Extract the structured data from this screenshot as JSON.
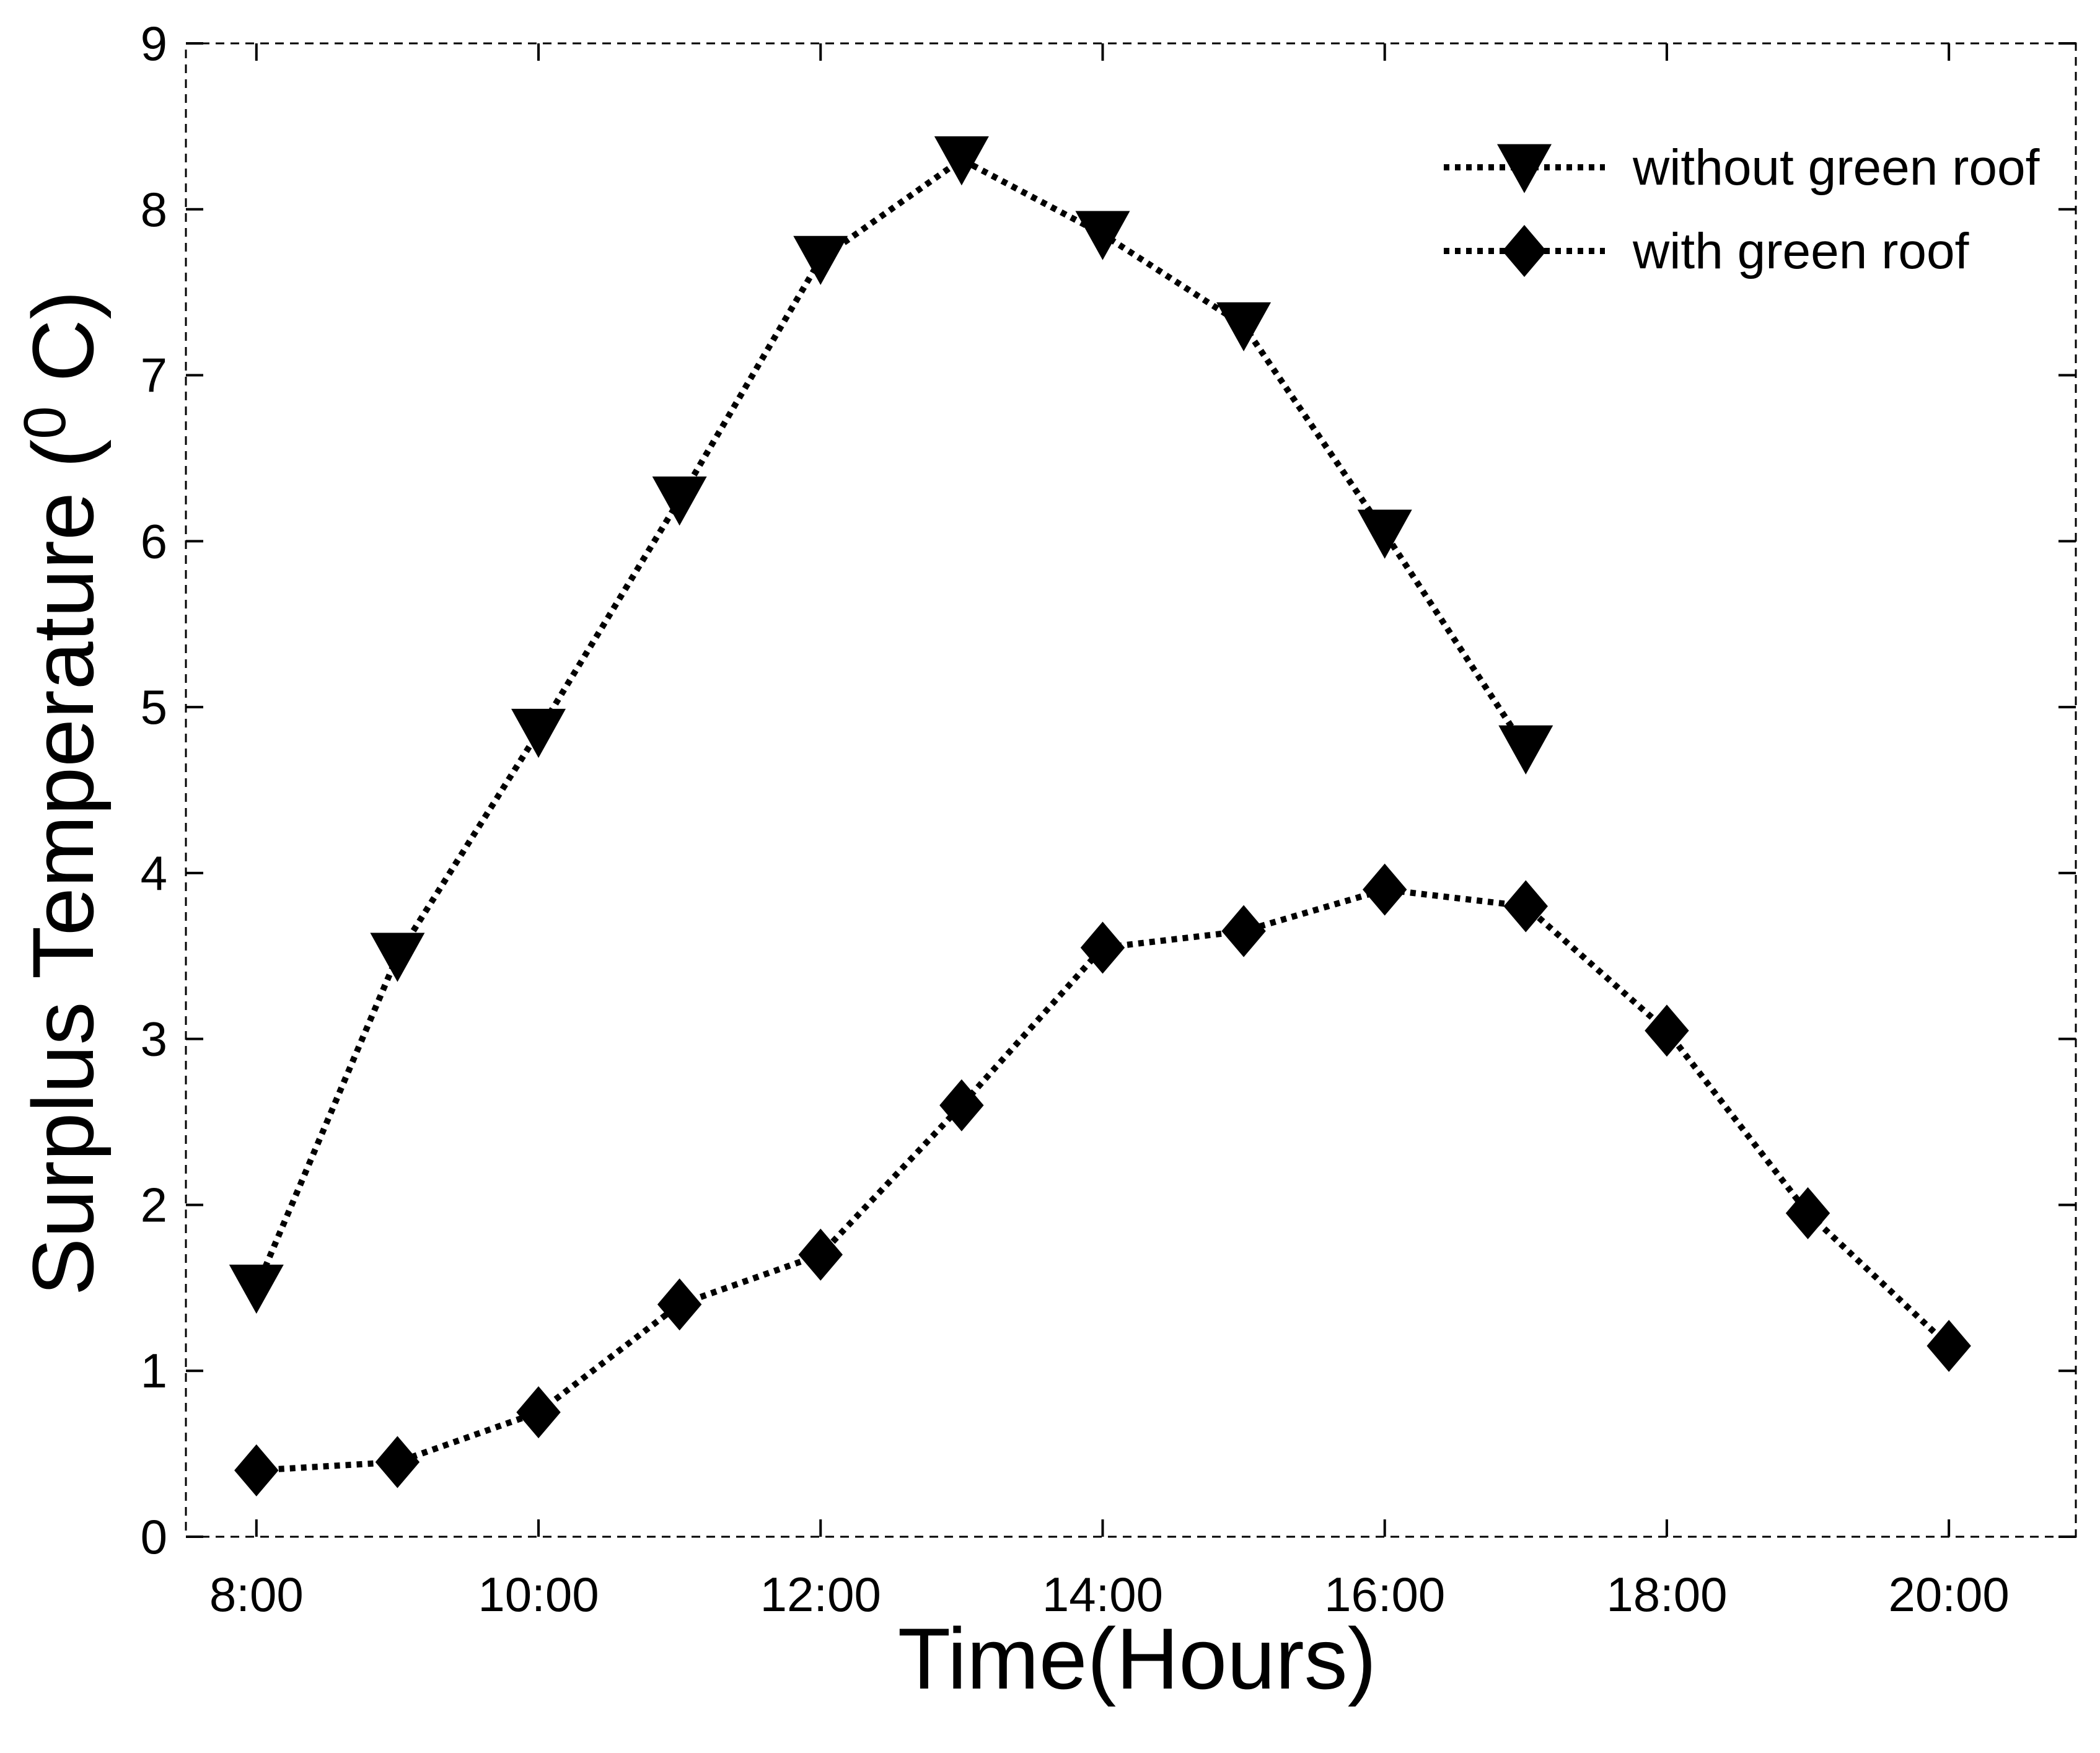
{
  "chart_data": {
    "type": "line",
    "title": "",
    "xlabel": "Time(Hours)",
    "ylabel": "Surplus Temperature (",
    "ylabel_sup": "0",
    "ylabel_end": " C)",
    "xlim": [
      7.5,
      20.9
    ],
    "ylim": [
      0,
      9
    ],
    "x_ticks": [
      8,
      10,
      12,
      14,
      16,
      18,
      20
    ],
    "x_tick_labels": [
      "8:00",
      "10:00",
      "12:00",
      "14:00",
      "16:00",
      "18:00",
      "20:00"
    ],
    "y_ticks": [
      0,
      1,
      2,
      3,
      4,
      5,
      6,
      7,
      8,
      9
    ],
    "y_tick_labels": [
      "0",
      "1",
      "2",
      "3",
      "4",
      "5",
      "6",
      "7",
      "8",
      "9"
    ],
    "grid": false,
    "legend_position": "top-right",
    "series": [
      {
        "name": "without green roof",
        "marker": "triangle-down",
        "color": "#000000",
        "x": [
          8,
          9,
          10,
          11,
          12,
          13,
          14,
          15,
          16,
          17
        ],
        "y": [
          1.5,
          3.5,
          4.85,
          6.25,
          7.7,
          8.3,
          7.85,
          7.3,
          6.05,
          4.75
        ]
      },
      {
        "name": "with green roof",
        "marker": "diamond",
        "color": "#000000",
        "x": [
          8,
          9,
          10,
          11,
          12,
          13,
          14,
          15,
          16,
          17,
          18,
          19,
          20
        ],
        "y": [
          0.4,
          0.45,
          0.75,
          1.4,
          1.7,
          2.6,
          3.55,
          3.65,
          3.9,
          3.8,
          3.05,
          1.95,
          1.15
        ]
      }
    ]
  }
}
